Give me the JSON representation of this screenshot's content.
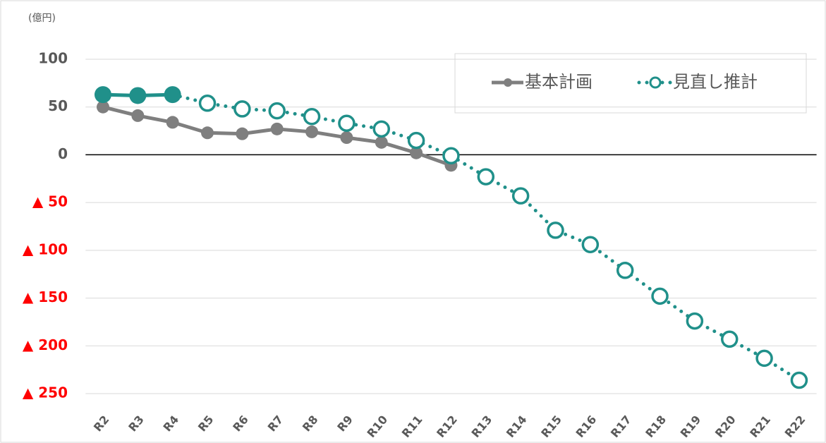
{
  "chart_data": {
    "type": "line",
    "unit_label": "(億円)",
    "categories": [
      "R2",
      "R3",
      "R4",
      "R5",
      "R6",
      "R7",
      "R8",
      "R9",
      "R10",
      "R11",
      "R12",
      "R13",
      "R14",
      "R15",
      "R16",
      "R17",
      "R18",
      "R19",
      "R20",
      "R21",
      "R22"
    ],
    "series": [
      {
        "name": "基本計画",
        "color": "#7f7f7f",
        "values": [
          50,
          41,
          34,
          23,
          22,
          27,
          24,
          18,
          13,
          2,
          -11,
          null,
          null,
          null,
          null,
          null,
          null,
          null,
          null,
          null,
          null
        ]
      },
      {
        "name": "見直し推計",
        "color": "#20908a",
        "filled_points": 3,
        "values": [
          63,
          62,
          63,
          54,
          48,
          46,
          40,
          33,
          27,
          15,
          -1,
          -23,
          -43,
          -79,
          -94,
          -121,
          -148,
          -174,
          -193,
          -213,
          -236
        ]
      }
    ],
    "ylim": [
      -250,
      100
    ],
    "yticks": [
      100,
      50,
      0,
      {
        "value": -50,
        "label": "▲ 50"
      },
      {
        "value": -100,
        "label": "▲ 100"
      },
      {
        "value": -150,
        "label": "▲ 150"
      },
      {
        "value": -200,
        "label": "▲ 200"
      },
      {
        "value": -250,
        "label": "▲ 250"
      }
    ],
    "negative_tick_color": "#ff0000",
    "grid": true,
    "legend": "top-right"
  }
}
